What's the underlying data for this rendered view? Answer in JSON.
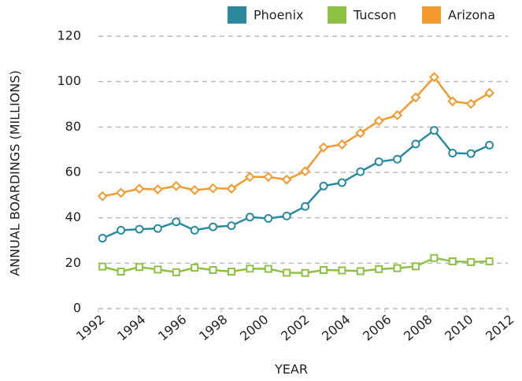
{
  "chart_data": {
    "type": "line",
    "xlabel": "YEAR",
    "ylabel": "ANNUAL BOARDINGS (MILLIONS)",
    "x": [
      1992.2,
      1993.1,
      1994,
      1994.9,
      1995.8,
      1996.7,
      1997.6,
      1998.5,
      1999.4,
      2000.3,
      2001.2,
      2002.1,
      2003,
      2003.9,
      2004.8,
      2005.7,
      2006.6,
      2007.5,
      2008.4,
      2009.3,
      2010.2,
      2011.1
    ],
    "series": [
      {
        "name": "Phoenix",
        "color": "#2b8a9e",
        "marker": "circle",
        "values": [
          31,
          34.5,
          35,
          35.3,
          38.2,
          34.5,
          36,
          36.5,
          40.3,
          39.7,
          40.8,
          45,
          54,
          55.5,
          60.3,
          64.7,
          65.8,
          72.5,
          78.5,
          68.5,
          68.3,
          72
        ]
      },
      {
        "name": "Tucson",
        "color": "#8dc043",
        "marker": "square",
        "values": [
          18.5,
          16.3,
          18.3,
          17.2,
          16,
          18,
          17,
          16.3,
          17.6,
          17.5,
          15.8,
          15.7,
          17,
          16.8,
          16.5,
          17.4,
          17.8,
          18.6,
          22.3,
          20.8,
          20.5,
          20.8
        ]
      },
      {
        "name": "Arizona",
        "color": "#f29a2e",
        "marker": "diamond",
        "values": [
          49.5,
          51,
          52.8,
          52.5,
          54,
          52.2,
          53,
          52.8,
          58,
          58,
          56.8,
          60.5,
          71,
          72.3,
          77.3,
          82.7,
          85.2,
          93,
          102,
          91.3,
          90.2,
          95
        ]
      }
    ],
    "xlim": [
      1992,
      2012
    ],
    "xticks": [
      1992,
      1994,
      1996,
      1998,
      2000,
      2002,
      2004,
      2006,
      2008,
      2010,
      2012
    ],
    "ylim": [
      0,
      120
    ],
    "yticks": [
      0,
      20,
      40,
      60,
      80,
      100,
      120
    ],
    "grid": true,
    "legend": "top-right"
  }
}
